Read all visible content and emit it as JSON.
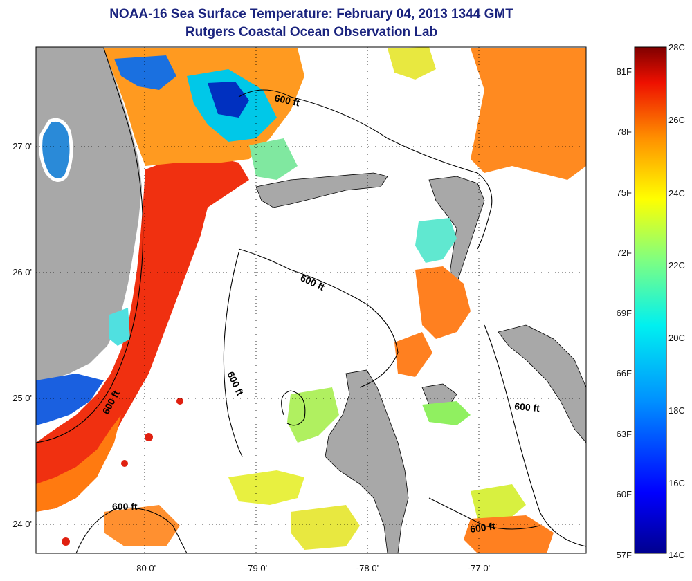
{
  "header": {
    "title": "NOAA-16 Sea Surface Temperature:  February 04, 2013 1344 GMT",
    "subtitle": "Rutgers Coastal Ocean Observation Lab"
  },
  "axes": {
    "x_ticks": [
      "-80 0'",
      "-79 0'",
      "-78 0'",
      "-77 0'"
    ],
    "y_ticks": [
      "27 0'",
      "26 0'",
      "25 0'",
      "24 0'"
    ]
  },
  "contour_labels": [
    "600 ft",
    "600 ft",
    "600 ft",
    "600 ft",
    "600 ft",
    "600 ft"
  ],
  "colorbar": {
    "celsius_labels": [
      "28C",
      "26C",
      "24C",
      "22C",
      "20C",
      "18C",
      "16C",
      "14C"
    ],
    "fahrenheit_labels": [
      "81F",
      "78F",
      "75F",
      "72F",
      "69F",
      "66F",
      "63F",
      "60F",
      "57F"
    ],
    "colors": [
      "#7f0000",
      "#e00000",
      "#ff7f00",
      "#ffff00",
      "#7fff7f",
      "#00ffff",
      "#0080ff",
      "#0000d0",
      "#00008f"
    ]
  },
  "colors": {
    "land": "#a8a8a8",
    "warm_current": "#f03010",
    "title": "#1a237e"
  }
}
